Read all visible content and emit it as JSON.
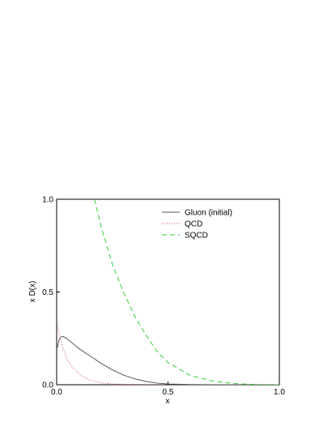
{
  "chart_data": {
    "type": "line",
    "xlabel": "x",
    "ylabel": "x D(x)",
    "xlim": [
      0,
      1
    ],
    "ylim": [
      0,
      1
    ],
    "xticks": [
      {
        "value": 0,
        "label": "0.0"
      },
      {
        "value": 0.5,
        "label": "0.5"
      },
      {
        "value": 1,
        "label": "1.0"
      }
    ],
    "yticks": [
      {
        "value": 0,
        "label": "0.0"
      },
      {
        "value": 0.5,
        "label": "0.5"
      },
      {
        "value": 1,
        "label": "1.0"
      }
    ],
    "legend": "upper right",
    "series": [
      {
        "name": "Gluon (initial)",
        "color": "#555555",
        "style": "solid",
        "x": [
          0.003,
          0.01,
          0.02,
          0.03,
          0.05,
          0.08,
          0.1,
          0.15,
          0.2,
          0.25,
          0.3,
          0.35,
          0.4,
          0.45,
          0.5,
          0.6,
          0.7,
          0.8,
          0.9,
          1.0
        ],
        "values": [
          0.2,
          0.24,
          0.258,
          0.26,
          0.245,
          0.215,
          0.195,
          0.155,
          0.115,
          0.08,
          0.052,
          0.032,
          0.018,
          0.009,
          0.004,
          0.001,
          0,
          0,
          0,
          0
        ]
      },
      {
        "name": "QCD",
        "color": "#e05050",
        "style": "dotted",
        "x": [
          0.003,
          0.01,
          0.02,
          0.03,
          0.05,
          0.07,
          0.1,
          0.12,
          0.15,
          0.2,
          0.25,
          0.3,
          0.4,
          0.5
        ],
        "values": [
          0.32,
          0.28,
          0.23,
          0.19,
          0.13,
          0.095,
          0.06,
          0.042,
          0.025,
          0.01,
          0.004,
          0.002,
          0,
          0
        ]
      },
      {
        "name": "SQCD",
        "color": "#33cc33",
        "style": "dashed",
        "x": [
          0.17,
          0.2,
          0.25,
          0.3,
          0.35,
          0.4,
          0.45,
          0.5,
          0.6,
          0.7,
          0.8,
          0.9,
          1.0
        ],
        "values": [
          1.0,
          0.85,
          0.65,
          0.5,
          0.37,
          0.27,
          0.18,
          0.12,
          0.05,
          0.02,
          0.006,
          0.001,
          0
        ]
      }
    ]
  }
}
